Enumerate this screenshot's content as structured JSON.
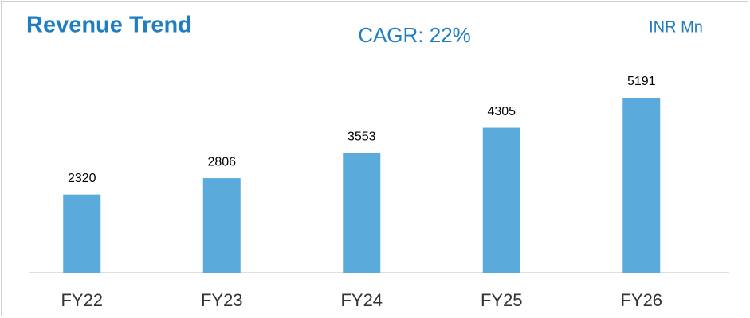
{
  "chart_data": {
    "type": "bar",
    "title": "Revenue Trend",
    "subtitle": "CAGR: 22%",
    "unit_label": "INR Mn",
    "categories": [
      "FY22",
      "FY23",
      "FY24",
      "FY25",
      "FY26"
    ],
    "values": [
      2320,
      2806,
      3553,
      4305,
      5191
    ],
    "color": "#5aaadb"
  }
}
